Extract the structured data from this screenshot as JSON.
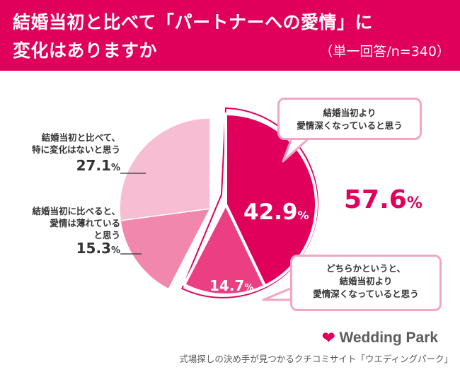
{
  "header": {
    "title_line1": "結婚当初と比べて「パートナーへの愛情」に",
    "title_line2": "変化はありますか",
    "subtitle": "（単一回答/n=340）"
  },
  "chart_data": {
    "type": "pie",
    "slices": [
      {
        "label": "結婚当初より愛情深くなっていると思う",
        "value": 42.9,
        "color": "#e0005c",
        "exploded": true
      },
      {
        "label": "どちらかというと、結婚当初より愛情深くなっていると思う",
        "value": 14.7,
        "color": "#ec3f83",
        "exploded": true
      },
      {
        "label": "結婚当初に比べると、愛情は薄れていると思う",
        "value": 15.3,
        "color": "#f287ae"
      },
      {
        "label": "結婚当初と比べて、特に変化はないと思う",
        "value": 27.1,
        "color": "#f7bdd2"
      }
    ],
    "unit": "%",
    "combined_total": {
      "value": 57.6,
      "label": "57.6"
    }
  },
  "labels": {
    "no_change": {
      "line1": "結婚当初と比べて、",
      "line2": "特に変化はないと思う",
      "pct": "27.1"
    },
    "decreased": {
      "line1": "結婚当初に比べると、",
      "line2": "愛情は薄れている",
      "line3": "と思う",
      "pct": "15.3"
    },
    "more": {
      "pct": "42.9"
    },
    "somewhat": {
      "pct": "14.7"
    },
    "unit": "%"
  },
  "callouts": {
    "more": {
      "line1": "結婚当初より",
      "line2": "愛情深くなっていると思う"
    },
    "somewhat": {
      "line1": "どちらかというと、",
      "line2": "結婚当初より",
      "line3": "愛情深くなっていると思う"
    }
  },
  "footer": {
    "brand": "Wedding Park",
    "tagline": "式場探しの決め手が見つかるクチコミサイト「ウエディングパーク」"
  }
}
